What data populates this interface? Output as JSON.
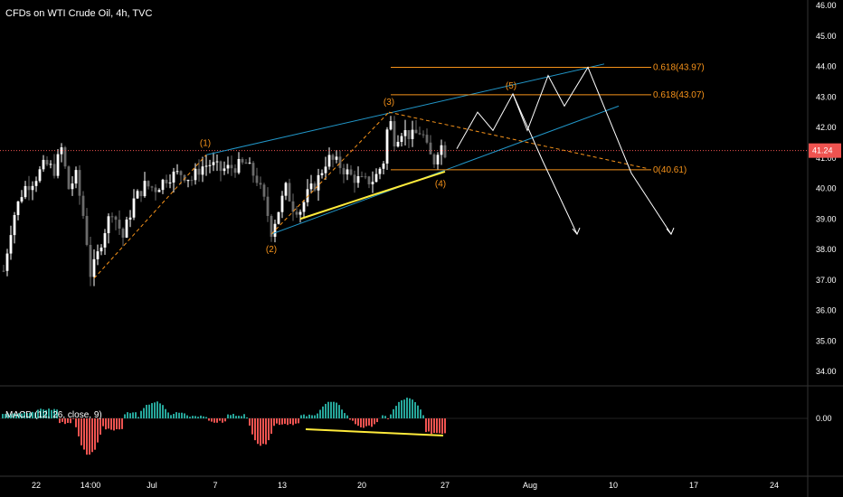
{
  "chart_data": {
    "type": "candlestick",
    "title": "CFDs on WTI Crude Oil, 4h, TVC",
    "last_price": "41.24",
    "y_axis_ticks": [
      "46.00",
      "45.00",
      "44.00",
      "43.00",
      "42.00",
      "41.00",
      "40.00",
      "39.00",
      "38.00",
      "37.00",
      "36.00",
      "35.00",
      "34.00"
    ],
    "ylim": [
      33.5,
      46.2
    ],
    "x_axis_ticks": [
      "22",
      "14:00",
      "Jul",
      "7",
      "13",
      "20",
      "27",
      "Aug",
      "10",
      "17",
      "24"
    ],
    "wave_labels": [
      {
        "label": "(1)",
        "date_index": 49,
        "price": 41.1
      },
      {
        "label": "(2)",
        "date_index": 63,
        "price": 38.5
      },
      {
        "label": "(3)",
        "date_index": 90,
        "price": 42.5
      },
      {
        "label": "(4)",
        "date_index": 101,
        "price": 40.6
      },
      {
        "label": "(5)",
        "date_index": 118,
        "price": 43.1
      }
    ],
    "fib_levels": [
      {
        "label": "0.618(43.97)",
        "price": 43.97
      },
      {
        "label": "0.618(43.07)",
        "price": 43.07
      },
      {
        "label": "0(40.61)",
        "price": 40.61
      }
    ],
    "macd": {
      "title": "MACD (12, 26, close, 9)",
      "zero_label": "0.00"
    }
  },
  "colors": {
    "background": "#000000",
    "up": "#ffffff",
    "down": "#555555",
    "channel": "#2196c8",
    "fib": "#f7931a",
    "dashed": "#f7931a",
    "support": "#ffeb3b",
    "projection": "#ffffff",
    "macd_up": "#26a69a",
    "macd_down": "#ef5350",
    "last_price_bg": "#ef5350"
  }
}
